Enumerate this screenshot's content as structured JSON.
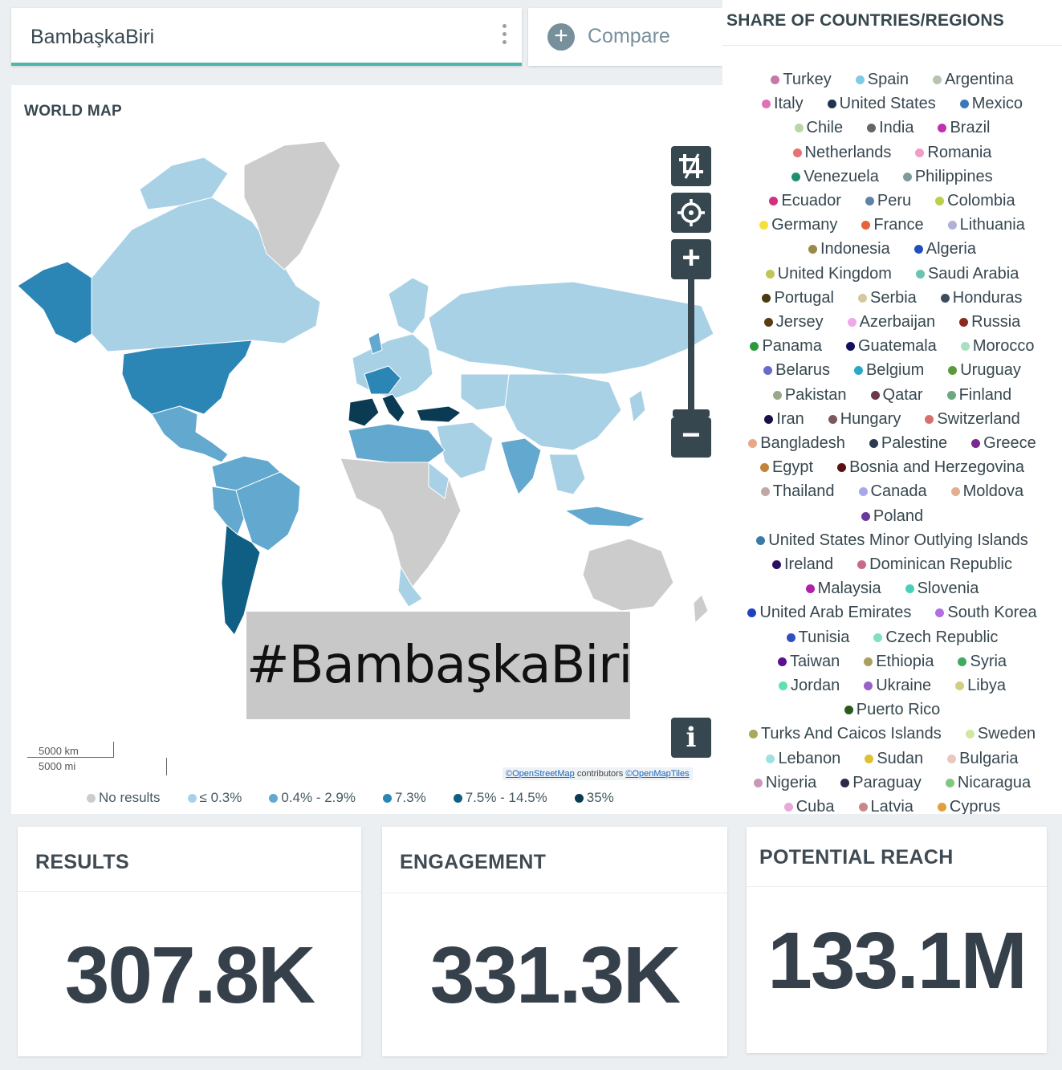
{
  "search": {
    "query": "BambaşkaBiri"
  },
  "compare": {
    "label": "Compare"
  },
  "map": {
    "title": "WORLD MAP",
    "hashtag": "#BambaşkaBiri",
    "scale_km": "5000 km",
    "scale_mi": "5000 mi",
    "attribution_osm": "©OpenStreetMap",
    "attribution_mid": " contributors ",
    "attribution_tiles": "©OpenMapTiles",
    "legend": [
      {
        "label": "No results",
        "color": "#cccccc"
      },
      {
        "label": "≤ 0.3%",
        "color": "#a9d1e6"
      },
      {
        "label": "0.4% - 2.9%",
        "color": "#62a8cf"
      },
      {
        "label": "7.3%",
        "color": "#2c86b5"
      },
      {
        "label": "7.5% - 14.5%",
        "color": "#0f5f84"
      },
      {
        "label": "35%",
        "color": "#0a3b52"
      }
    ],
    "region_colors": {
      "none": "#cccccc",
      "low": "#a9d1e6",
      "mid": "#62a8cf",
      "high": "#2c86b5",
      "vhigh": "#0f5f84",
      "top": "#0a3b52"
    }
  },
  "countries": {
    "title": "SHARE OF COUNTRIES/REGIONS",
    "rows": [
      [
        {
          "name": "Turkey",
          "color": "#c678a8"
        },
        {
          "name": "Spain",
          "color": "#7ecbe3"
        },
        {
          "name": "Argentina",
          "color": "#b7c4b0"
        }
      ],
      [
        {
          "name": "Italy",
          "color": "#e070b8"
        },
        {
          "name": "United States",
          "color": "#1d3550"
        },
        {
          "name": "Mexico",
          "color": "#3b78b8"
        }
      ],
      [
        {
          "name": "Chile",
          "color": "#b9d6a8"
        },
        {
          "name": "India",
          "color": "#666666"
        },
        {
          "name": "Brazil",
          "color": "#c031b0"
        }
      ],
      [
        {
          "name": "Netherlands",
          "color": "#e57373"
        },
        {
          "name": "Romania",
          "color": "#f29cc8"
        }
      ],
      [
        {
          "name": "Venezuela",
          "color": "#1f8f6f"
        },
        {
          "name": "Philippines",
          "color": "#7f9b9b"
        }
      ],
      [
        {
          "name": "Ecuador",
          "color": "#d0307f"
        },
        {
          "name": "Peru",
          "color": "#5e83a8"
        },
        {
          "name": "Colombia",
          "color": "#b8d04a"
        }
      ],
      [
        {
          "name": "Germany",
          "color": "#f5e03a"
        },
        {
          "name": "France",
          "color": "#e8623c"
        },
        {
          "name": "Lithuania",
          "color": "#b0b0d8"
        }
      ],
      [
        {
          "name": "Indonesia",
          "color": "#9a8a4a"
        },
        {
          "name": "Algeria",
          "color": "#2050c0"
        }
      ],
      [
        {
          "name": "United Kingdom",
          "color": "#c2c45a"
        },
        {
          "name": "Saudi Arabia",
          "color": "#6bc4b0"
        }
      ],
      [
        {
          "name": "Portugal",
          "color": "#4a3a10"
        },
        {
          "name": "Serbia",
          "color": "#d4c8a0"
        },
        {
          "name": "Honduras",
          "color": "#3c4c5c"
        }
      ],
      [
        {
          "name": "Jersey",
          "color": "#5a3c10"
        },
        {
          "name": "Azerbaijan",
          "color": "#f0a8e8"
        },
        {
          "name": "Russia",
          "color": "#8a2a20"
        }
      ],
      [
        {
          "name": "Panama",
          "color": "#2a9a3a"
        },
        {
          "name": "Guatemala",
          "color": "#141060"
        },
        {
          "name": "Morocco",
          "color": "#a8e0c0"
        }
      ],
      [
        {
          "name": "Belarus",
          "color": "#6a6ac8"
        },
        {
          "name": "Belgium",
          "color": "#2aa8c8"
        },
        {
          "name": "Uruguay",
          "color": "#5a9a3a"
        }
      ],
      [
        {
          "name": "Pakistan",
          "color": "#9aa88a"
        },
        {
          "name": "Qatar",
          "color": "#6a3a4a"
        },
        {
          "name": "Finland",
          "color": "#6aa880"
        }
      ],
      [
        {
          "name": "Iran",
          "color": "#1a1048"
        },
        {
          "name": "Hungary",
          "color": "#7a5a5a"
        },
        {
          "name": "Switzerland",
          "color": "#d8706a"
        }
      ],
      [
        {
          "name": "Bangladesh",
          "color": "#e8a888"
        },
        {
          "name": "Palestine",
          "color": "#2a3a50"
        },
        {
          "name": "Greece",
          "color": "#7a2a8a"
        }
      ],
      [
        {
          "name": "Egypt",
          "color": "#c0843a"
        },
        {
          "name": "Bosnia and Herzegovina",
          "color": "#5a1010"
        }
      ],
      [
        {
          "name": "Thailand",
          "color": "#c0a8a8"
        },
        {
          "name": "Canada",
          "color": "#a8a8e8"
        },
        {
          "name": "Moldova",
          "color": "#e0b090"
        }
      ],
      [
        {
          "name": "Poland",
          "color": "#6a3a9a"
        }
      ],
      [
        {
          "name": "United States Minor Outlying Islands",
          "color": "#3a7aa8"
        }
      ],
      [
        {
          "name": "Ireland",
          "color": "#2a1060"
        },
        {
          "name": "Dominican Republic",
          "color": "#c86a8a"
        }
      ],
      [
        {
          "name": "Malaysia",
          "color": "#b020a8"
        },
        {
          "name": "Slovenia",
          "color": "#4ad0b8"
        }
      ],
      [
        {
          "name": "United Arab Emirates",
          "color": "#2040c0"
        },
        {
          "name": "South Korea",
          "color": "#b070e0"
        }
      ],
      [
        {
          "name": "Tunisia",
          "color": "#3050c0"
        },
        {
          "name": "Czech Republic",
          "color": "#80e0c0"
        }
      ],
      [
        {
          "name": "Taiwan",
          "color": "#5a1090"
        },
        {
          "name": "Ethiopia",
          "color": "#a8a060"
        },
        {
          "name": "Syria",
          "color": "#40a860"
        }
      ],
      [
        {
          "name": "Jordan",
          "color": "#60e0b0"
        },
        {
          "name": "Ukraine",
          "color": "#9a60c8"
        },
        {
          "name": "Libya",
          "color": "#d0d080"
        }
      ],
      [
        {
          "name": "Puerto Rico",
          "color": "#2a5a1a"
        }
      ],
      [
        {
          "name": "Turks And Caicos Islands",
          "color": "#a8a860"
        },
        {
          "name": "Sweden",
          "color": "#d0e8a0"
        }
      ],
      [
        {
          "name": "Lebanon",
          "color": "#a0e0e0"
        },
        {
          "name": "Sudan",
          "color": "#e0c030"
        },
        {
          "name": "Bulgaria",
          "color": "#e8c8c0"
        }
      ],
      [
        {
          "name": "Nigeria",
          "color": "#c898b8"
        },
        {
          "name": "Paraguay",
          "color": "#2a2a4a"
        },
        {
          "name": "Nicaragua",
          "color": "#80c880"
        }
      ],
      [
        {
          "name": "Cuba",
          "color": "#e8a8d8"
        },
        {
          "name": "Latvia",
          "color": "#c88888"
        },
        {
          "name": "Cyprus",
          "color": "#e0a040"
        }
      ]
    ]
  },
  "stats": {
    "results": {
      "label": "RESULTS",
      "value": "307.8K"
    },
    "engagement": {
      "label": "ENGAGEMENT",
      "value": "331.3K"
    },
    "reach": {
      "label": "POTENTIAL REACH",
      "value": "133.1M"
    }
  }
}
